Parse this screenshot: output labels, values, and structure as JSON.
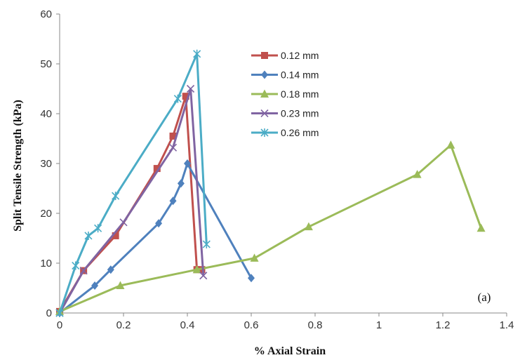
{
  "chart_data": {
    "type": "line",
    "xlabel": "% Axial Strain",
    "ylabel": "Split Tensile Strength (kPa)",
    "xlim": [
      0,
      1.4
    ],
    "ylim": [
      0,
      60
    ],
    "xticks": [
      "0",
      "0.2",
      "0.4",
      "0.6",
      "0.8",
      "1",
      "1.2",
      "1.4"
    ],
    "yticks": [
      "0",
      "10",
      "20",
      "30",
      "40",
      "50",
      "60"
    ],
    "grid": false,
    "legend_position": "top-right",
    "annotation": "(a)",
    "series": [
      {
        "name": "0.12 mm",
        "color": "#C0504D",
        "marker": "square",
        "points": [
          [
            0,
            0.3
          ],
          [
            0.075,
            8.5
          ],
          [
            0.175,
            15.5
          ],
          [
            0.305,
            29
          ],
          [
            0.355,
            35.5
          ],
          [
            0.395,
            43.5
          ],
          [
            0.43,
            8.7
          ],
          [
            0.445,
            8.7
          ]
        ]
      },
      {
        "name": "0.14 mm",
        "color": "#4F81BD",
        "marker": "diamond",
        "points": [
          [
            0,
            0
          ],
          [
            0.11,
            5.5
          ],
          [
            0.16,
            8.7
          ],
          [
            0.31,
            18
          ],
          [
            0.355,
            22.5
          ],
          [
            0.38,
            26
          ],
          [
            0.4,
            30
          ],
          [
            0.6,
            7
          ]
        ]
      },
      {
        "name": "0.18 mm",
        "color": "#9BBB59",
        "marker": "triangle",
        "points": [
          [
            0,
            0.3
          ],
          [
            0.19,
            5.5
          ],
          [
            0.43,
            8.7
          ],
          [
            0.61,
            11
          ],
          [
            0.78,
            17.3
          ],
          [
            1.12,
            27.8
          ],
          [
            1.225,
            33.7
          ],
          [
            1.32,
            17
          ]
        ]
      },
      {
        "name": "0.23 mm",
        "color": "#8064A2",
        "marker": "x",
        "points": [
          [
            0,
            0
          ],
          [
            0.075,
            8.5
          ],
          [
            0.2,
            18.2
          ],
          [
            0.355,
            33.2
          ],
          [
            0.41,
            45
          ],
          [
            0.45,
            7.5
          ]
        ]
      },
      {
        "name": "0.26 mm",
        "color": "#4BACC6",
        "marker": "star",
        "points": [
          [
            0,
            0
          ],
          [
            0.05,
            9.5
          ],
          [
            0.09,
            15.5
          ],
          [
            0.12,
            17
          ],
          [
            0.175,
            23.5
          ],
          [
            0.37,
            43
          ],
          [
            0.43,
            52
          ],
          [
            0.46,
            13.8
          ]
        ]
      }
    ]
  }
}
